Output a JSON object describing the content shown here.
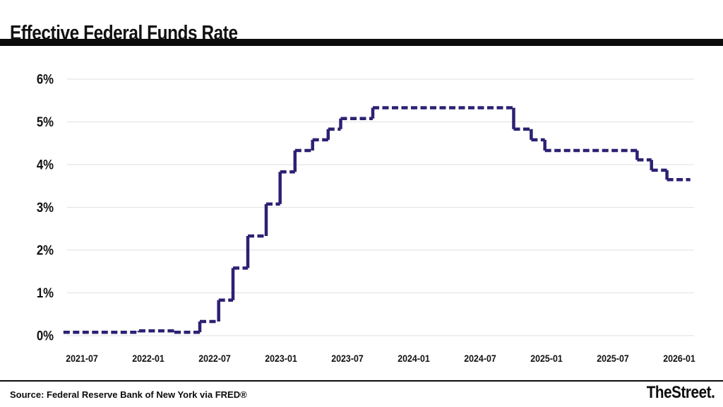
{
  "header": {
    "title": "Effective Federal Funds Rate"
  },
  "footer": {
    "source": "Source: Federal Reserve Bank of New York via FRED®",
    "brand": "TheStreet",
    "brand_dot": "."
  },
  "chart_data": {
    "type": "line",
    "subtype": "step-after",
    "title": "Effective Federal Funds Rate",
    "unit": "%",
    "grid": "horizontal",
    "legend": "none",
    "line_color": "#2b2173",
    "grid_color": "#e5e5e5",
    "label_color": "#111111",
    "ylim": [
      0,
      6
    ],
    "xlim": [
      "2021-05",
      "2026-02"
    ],
    "y_ticks": [
      "6%",
      "5%",
      "4%",
      "3%",
      "2%",
      "1%",
      "0%"
    ],
    "x_ticks": [
      "2021-07",
      "2022-01",
      "2022-07",
      "2023-01",
      "2023-07",
      "2024-01",
      "2024-07",
      "2025-01",
      "2025-07",
      "2026-01"
    ],
    "series": [
      {
        "name": "Effective Federal Funds Rate (%)",
        "points": [
          [
            "2021-05-11",
            0.08
          ],
          [
            "2021-12-06",
            0.11
          ],
          [
            "2022-03-12",
            0.08
          ],
          [
            "2022-05-21",
            0.33
          ],
          [
            "2022-07-12",
            0.83
          ],
          [
            "2022-08-21",
            1.58
          ],
          [
            "2022-10-01",
            2.33
          ],
          [
            "2022-11-21",
            3.08
          ],
          [
            "2022-12-29",
            3.83
          ],
          [
            "2023-02-09",
            4.33
          ],
          [
            "2023-03-27",
            4.58
          ],
          [
            "2023-05-09",
            4.83
          ],
          [
            "2023-06-13",
            5.08
          ],
          [
            "2023-09-10",
            5.33
          ],
          [
            "2024-10-02",
            4.83
          ],
          [
            "2024-11-20",
            4.58
          ],
          [
            "2024-12-27",
            4.33
          ],
          [
            "2025-09-07",
            4.11
          ],
          [
            "2025-10-16",
            3.87
          ],
          [
            "2025-11-28",
            3.65
          ],
          [
            "2026-02-01",
            3.65
          ]
        ]
      }
    ]
  }
}
